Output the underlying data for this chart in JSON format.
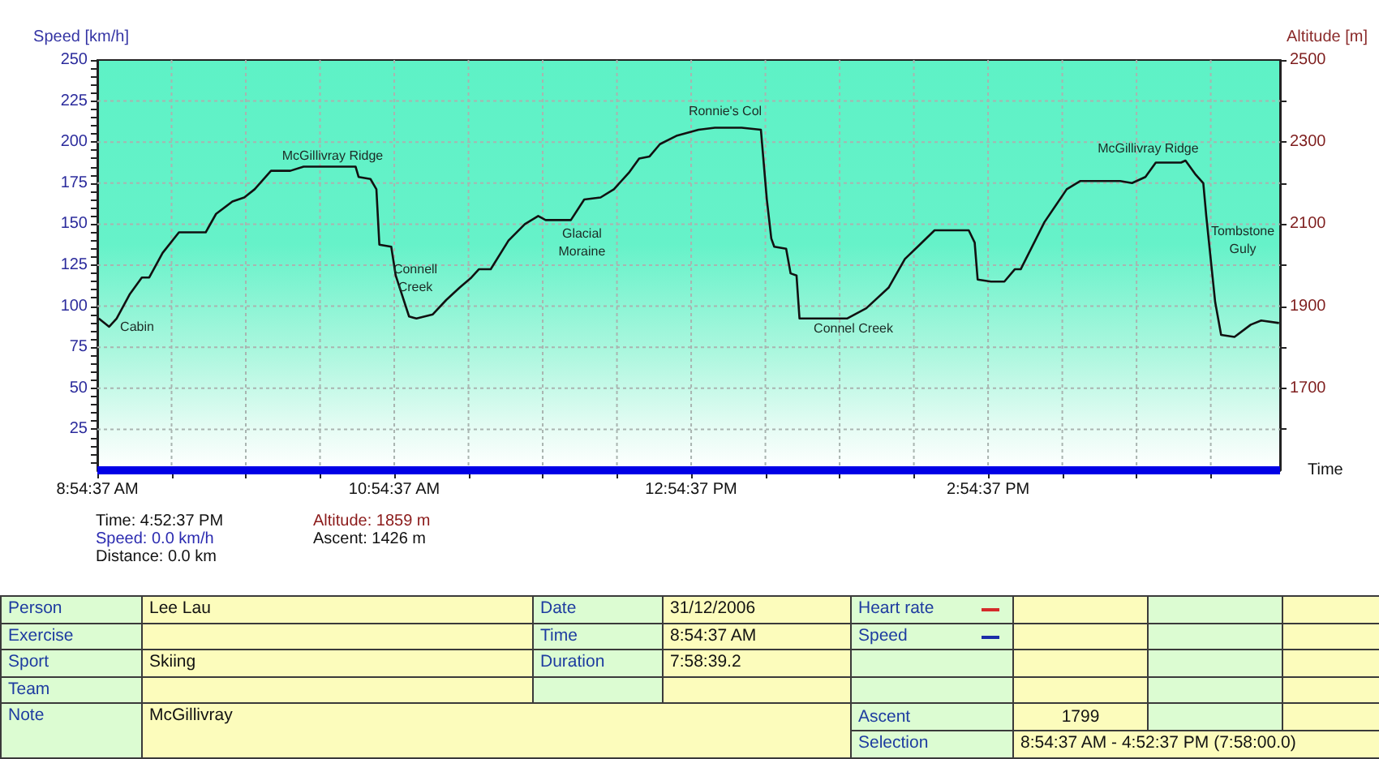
{
  "chart_data": [
    {
      "type": "line",
      "xlabel": "Time",
      "ylabel": "Speed [km/h]",
      "y2label": "Altitude [m]",
      "grid": true,
      "marker": "none",
      "xlim": [
        8.9103,
        16.8769
      ],
      "xticks": [
        {
          "value": 8.9103,
          "label": "8:54:37 AM"
        },
        {
          "value": 9.4103,
          "label": null
        },
        {
          "value": 9.9103,
          "label": null
        },
        {
          "value": 10.4103,
          "label": null
        },
        {
          "value": 10.9103,
          "label": "10:54:37 AM"
        },
        {
          "value": 11.4103,
          "label": null
        },
        {
          "value": 11.9103,
          "label": null
        },
        {
          "value": 12.4103,
          "label": null
        },
        {
          "value": 12.9103,
          "label": "12:54:37 PM"
        },
        {
          "value": 13.4103,
          "label": null
        },
        {
          "value": 13.9103,
          "label": null
        },
        {
          "value": 14.4103,
          "label": null
        },
        {
          "value": 14.9103,
          "label": "2:54:37 PM"
        },
        {
          "value": 15.4103,
          "label": null
        },
        {
          "value": 15.9103,
          "label": null
        },
        {
          "value": 16.4103,
          "label": null
        }
      ],
      "ylim": [
        0,
        250
      ],
      "yticks": [
        {
          "value": 5,
          "label": null
        },
        {
          "value": 10,
          "label": null
        },
        {
          "value": 15,
          "label": null
        },
        {
          "value": 20,
          "label": null
        },
        25,
        {
          "value": 30,
          "label": null
        },
        {
          "value": 35,
          "label": null
        },
        {
          "value": 40,
          "label": null
        },
        {
          "value": 45,
          "label": null
        },
        50,
        {
          "value": 55,
          "label": null
        },
        {
          "value": 60,
          "label": null
        },
        {
          "value": 65,
          "label": null
        },
        {
          "value": 70,
          "label": null
        },
        75,
        {
          "value": 80,
          "label": null
        },
        {
          "value": 85,
          "label": null
        },
        {
          "value": 90,
          "label": null
        },
        {
          "value": 95,
          "label": null
        },
        100,
        {
          "value": 105,
          "label": null
        },
        {
          "value": 110,
          "label": null
        },
        {
          "value": 115,
          "label": null
        },
        {
          "value": 120,
          "label": null
        },
        125,
        {
          "value": 130,
          "label": null
        },
        {
          "value": 135,
          "label": null
        },
        {
          "value": 140,
          "label": null
        },
        {
          "value": 145,
          "label": null
        },
        150,
        {
          "value": 155,
          "label": null
        },
        {
          "value": 160,
          "label": null
        },
        {
          "value": 165,
          "label": null
        },
        {
          "value": 170,
          "label": null
        },
        175,
        {
          "value": 180,
          "label": null
        },
        {
          "value": 185,
          "label": null
        },
        {
          "value": 190,
          "label": null
        },
        {
          "value": 195,
          "label": null
        },
        200,
        {
          "value": 205,
          "label": null
        },
        {
          "value": 210,
          "label": null
        },
        {
          "value": 215,
          "label": null
        },
        {
          "value": 220,
          "label": null
        },
        225,
        {
          "value": 230,
          "label": null
        },
        {
          "value": 235,
          "label": null
        },
        {
          "value": 240,
          "label": null
        },
        {
          "value": 245,
          "label": null
        },
        250
      ],
      "y2lim": [
        1500,
        2500
      ],
      "y2ticks": [
        {
          "value": 1600,
          "label": null
        },
        1700,
        {
          "value": 1800,
          "label": null
        },
        1900,
        {
          "value": 2000,
          "label": null
        },
        2100,
        {
          "value": 2200,
          "label": null
        },
        2300,
        {
          "value": 2400,
          "label": null
        },
        2500
      ],
      "series": [
        {
          "axis": "y2",
          "color": "#111111",
          "x": [
            8.92,
            8.99,
            9.04,
            9.13,
            9.21,
            9.26,
            9.35,
            9.46,
            9.64,
            9.71,
            9.82,
            9.9,
            9.97,
            10.08,
            10.21,
            10.3,
            10.55,
            10.65,
            10.67,
            10.75,
            10.79,
            10.81,
            10.89,
            10.92,
            11.01,
            11.06,
            11.17,
            11.26,
            11.35,
            11.43,
            11.48,
            11.56,
            11.68,
            11.79,
            11.88,
            11.93,
            12.1,
            12.19,
            12.3,
            12.39,
            12.49,
            12.56,
            12.63,
            12.7,
            12.81,
            12.96,
            13.07,
            13.25,
            13.38,
            13.42,
            13.45,
            13.47,
            13.55,
            13.58,
            13.62,
            13.64,
            13.96,
            14.09,
            14.24,
            14.35,
            14.45,
            14.55,
            14.78,
            14.82,
            14.84,
            14.93,
            15.02,
            15.09,
            15.13,
            15.29,
            15.44,
            15.53,
            15.8,
            15.88,
            15.97,
            16.04,
            16.21,
            16.24,
            16.31,
            16.36,
            16.38,
            16.44,
            16.48,
            16.57,
            16.68,
            16.75,
            16.87
          ],
          "values": [
            1870,
            1850,
            1870,
            1930,
            1970,
            1970,
            2030,
            2080,
            2080,
            2125,
            2155,
            2165,
            2185,
            2230,
            2230,
            2240,
            2240,
            2240,
            2215,
            2210,
            2185,
            2050,
            2045,
            1975,
            1875,
            1870,
            1880,
            1915,
            1945,
            1970,
            1990,
            1990,
            2060,
            2100,
            2120,
            2110,
            2110,
            2160,
            2165,
            2185,
            2225,
            2260,
            2265,
            2295,
            2315,
            2330,
            2335,
            2335,
            2330,
            2160,
            2065,
            2045,
            2040,
            1980,
            1975,
            1870,
            1870,
            1895,
            1945,
            2015,
            2050,
            2085,
            2085,
            2055,
            1965,
            1960,
            1960,
            1990,
            1990,
            2105,
            2185,
            2205,
            2205,
            2200,
            2215,
            2250,
            2250,
            2255,
            2220,
            2200,
            2120,
            1910,
            1830,
            1825,
            1855,
            1865,
            1859
          ]
        },
        {
          "color": "#0000e6",
          "x": [
            8.9103,
            16.8769
          ],
          "values": [
            0,
            0
          ]
        }
      ],
      "annotations": [
        "Cabin",
        "McGillivray Ridge",
        "Connell\nCreek",
        "Glacial\nMoraine",
        "Ronnie's Col",
        "Connel Creek",
        "McGillivray Ridge",
        "Tombstone\nGuly",
        "Time: 4:52:37 PM",
        "Speed: 0.0 km/h",
        "Distance: 0.0 km",
        "Altitude: 1859 m",
        "Ascent: 1426 m"
      ]
    },
    {
      "type": "other",
      "annotations": [
        "Person",
        "Lee Lau",
        "Date",
        "31/12/2006",
        "Heart rate",
        "Exercise",
        "Time",
        "8:54:37 AM",
        "Speed",
        "Sport",
        "Skiing",
        "Duration",
        "7:58:39.2",
        "Team",
        "Note",
        "McGillivray",
        "Ascent",
        "1799",
        "Selection",
        "8:54:37 AM - 4:52:37 PM (7:58:00.0)"
      ]
    }
  ]
}
